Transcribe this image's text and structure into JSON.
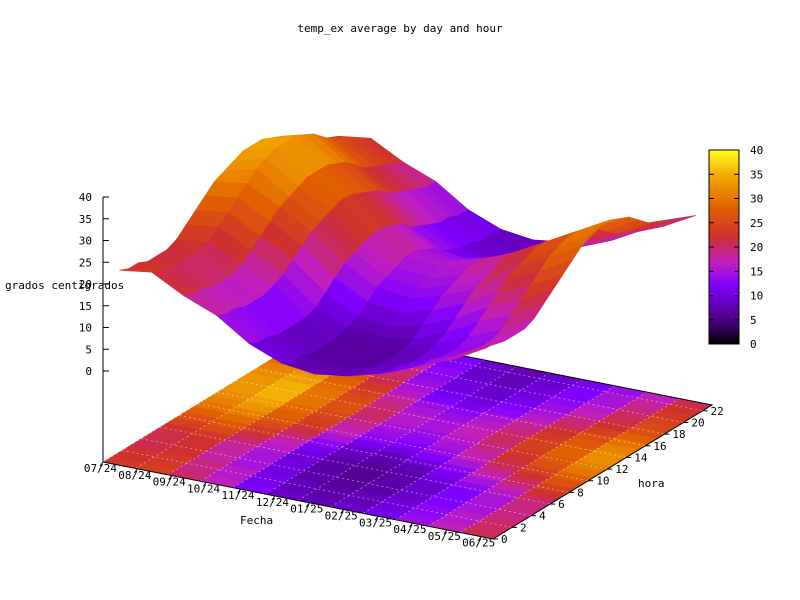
{
  "chart_data": {
    "type": "surface-3d",
    "title": "temp_ex average by day and hour",
    "xlabel": "Fecha",
    "ylabel": "hora",
    "zlabel": "grados centígrados",
    "x_ticks": [
      "07/24",
      "08/24",
      "09/24",
      "10/24",
      "11/24",
      "12/24",
      "01/25",
      "02/25",
      "03/25",
      "04/25",
      "05/25",
      "06/25"
    ],
    "y_ticks": [
      0,
      2,
      4,
      6,
      8,
      10,
      12,
      14,
      16,
      18,
      20,
      22
    ],
    "z_ticks": [
      0,
      5,
      10,
      15,
      20,
      25,
      30,
      35,
      40
    ],
    "zlim": [
      0,
      40
    ],
    "colorbar": {
      "range": [
        0,
        40
      ],
      "ticks": [
        0,
        5,
        10,
        15,
        20,
        25,
        30,
        35,
        40
      ],
      "palette": [
        "#000000",
        "#4b0082",
        "#8000ff",
        "#c020c0",
        "#d03030",
        "#e06000",
        "#f0a000",
        "#ffff20"
      ]
    },
    "series": [
      {
        "month": "07/24",
        "hour_values": [
          23,
          22,
          22,
          21,
          21,
          21,
          22,
          24,
          26,
          28,
          30,
          31,
          32,
          33,
          33,
          33,
          32,
          31,
          29,
          27,
          26,
          25,
          24,
          23
        ]
      },
      {
        "month": "08/24",
        "hour_values": [
          24,
          23,
          23,
          22,
          22,
          22,
          23,
          25,
          27,
          29,
          31,
          33,
          34,
          35,
          35,
          35,
          34,
          33,
          31,
          29,
          27,
          26,
          25,
          24
        ]
      },
      {
        "month": "09/24",
        "hour_values": [
          20,
          19,
          19,
          18,
          18,
          18,
          19,
          21,
          23,
          25,
          27,
          28,
          29,
          30,
          30,
          30,
          29,
          28,
          26,
          24,
          23,
          22,
          21,
          20
        ]
      },
      {
        "month": "10/24",
        "hour_values": [
          17,
          16,
          16,
          15,
          15,
          15,
          16,
          17,
          19,
          21,
          23,
          24,
          25,
          26,
          26,
          25,
          24,
          23,
          21,
          20,
          19,
          18,
          17,
          17
        ]
      },
      {
        "month": "11/24",
        "hour_values": [
          12,
          11,
          11,
          10,
          10,
          10,
          10,
          11,
          13,
          15,
          17,
          18,
          19,
          20,
          20,
          19,
          18,
          16,
          15,
          14,
          13,
          13,
          12,
          12
        ]
      },
      {
        "month": "12/24",
        "hour_values": [
          9,
          8,
          8,
          7,
          7,
          7,
          7,
          8,
          9,
          11,
          13,
          14,
          15,
          16,
          16,
          15,
          14,
          12,
          11,
          10,
          10,
          9,
          9,
          9
        ]
      },
      {
        "month": "01/25",
        "hour_values": [
          8,
          7,
          7,
          6,
          6,
          6,
          6,
          7,
          8,
          10,
          12,
          13,
          14,
          15,
          15,
          14,
          13,
          11,
          10,
          9,
          9,
          8,
          8,
          8
        ]
      },
      {
        "month": "02/25",
        "hour_values": [
          9,
          8,
          8,
          7,
          7,
          7,
          7,
          8,
          10,
          12,
          14,
          15,
          16,
          17,
          17,
          16,
          15,
          13,
          12,
          11,
          10,
          10,
          9,
          9
        ]
      },
      {
        "month": "03/25",
        "hour_values": [
          11,
          10,
          10,
          9,
          9,
          9,
          10,
          11,
          13,
          15,
          17,
          18,
          19,
          20,
          20,
          19,
          18,
          16,
          15,
          14,
          13,
          12,
          12,
          11
        ]
      },
      {
        "month": "04/25",
        "hour_values": [
          14,
          13,
          13,
          12,
          12,
          12,
          13,
          15,
          17,
          19,
          21,
          22,
          23,
          24,
          24,
          23,
          22,
          20,
          19,
          17,
          16,
          15,
          15,
          14
        ]
      },
      {
        "month": "05/25",
        "hour_values": [
          17,
          16,
          16,
          15,
          15,
          15,
          16,
          18,
          20,
          22,
          24,
          26,
          27,
          28,
          28,
          27,
          26,
          24,
          22,
          21,
          20,
          19,
          18,
          17
        ]
      },
      {
        "month": "06/25",
        "hour_values": [
          21,
          20,
          20,
          19,
          19,
          19,
          20,
          22,
          24,
          26,
          28,
          30,
          31,
          32,
          32,
          31,
          30,
          28,
          26,
          25,
          24,
          23,
          22,
          21
        ]
      }
    ]
  }
}
